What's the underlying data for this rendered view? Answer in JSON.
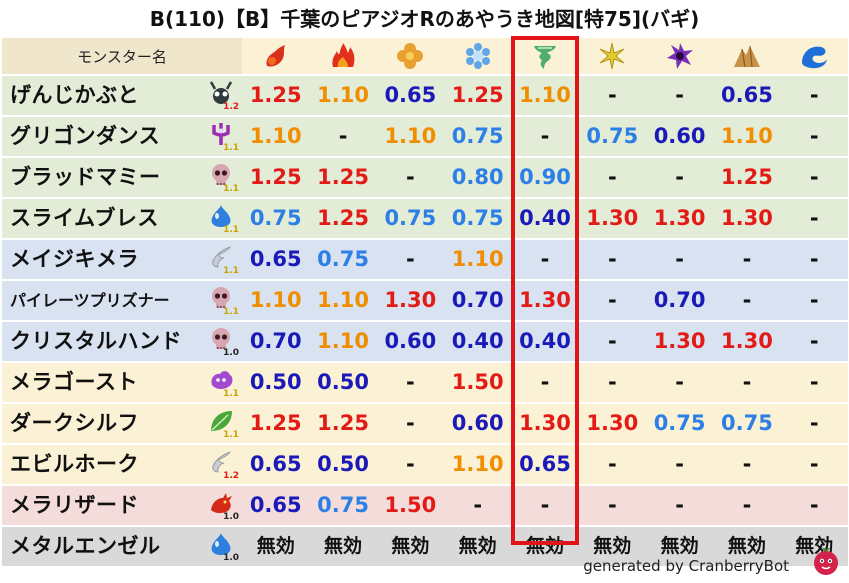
{
  "title": "B(110)【B】千葉のピアジオRのあやうき地図[特75](バギ)",
  "header": {
    "label": "モンスター名",
    "icons": [
      {
        "name": "fire-small-element-icon"
      },
      {
        "name": "fire-large-element-icon"
      },
      {
        "name": "earth-clover-element-icon"
      },
      {
        "name": "ice-snowflake-element-icon"
      },
      {
        "name": "wind-tornado-element-icon"
      },
      {
        "name": "light-burst-element-icon"
      },
      {
        "name": "dark-vortex-element-icon"
      },
      {
        "name": "earth-rock-element-icon"
      },
      {
        "name": "water-wave-element-icon"
      }
    ]
  },
  "rows": [
    {
      "name": "げんじかぶと",
      "grade": "1.2",
      "grade_color": "#e31b17",
      "bg": "green",
      "icon": "beetle-monster-icon",
      "icon_color": "#2f3a3a",
      "values": [
        {
          "t": "1.25",
          "c": "red"
        },
        {
          "t": "1.10",
          "c": "orange"
        },
        {
          "t": "0.65",
          "c": "navy"
        },
        {
          "t": "1.25",
          "c": "red"
        },
        {
          "t": "1.10",
          "c": "orange"
        },
        {
          "t": "-",
          "c": "dash"
        },
        {
          "t": "-",
          "c": "dash"
        },
        {
          "t": "0.65",
          "c": "navy"
        },
        {
          "t": "-",
          "c": "dash"
        }
      ]
    },
    {
      "name": "グリゴンダンス",
      "grade": "1.1",
      "grade_color": "#c9a400",
      "bg": "green",
      "icon": "trident-monster-icon",
      "icon_color": "#9a2fb0",
      "values": [
        {
          "t": "1.10",
          "c": "orange"
        },
        {
          "t": "-",
          "c": "dash"
        },
        {
          "t": "1.10",
          "c": "orange"
        },
        {
          "t": "0.75",
          "c": "blue"
        },
        {
          "t": "-",
          "c": "dash"
        },
        {
          "t": "0.75",
          "c": "blue"
        },
        {
          "t": "0.60",
          "c": "navy"
        },
        {
          "t": "1.10",
          "c": "orange"
        },
        {
          "t": "-",
          "c": "dash"
        }
      ]
    },
    {
      "name": "ブラッドマミー",
      "grade": "1.1",
      "grade_color": "#c9a400",
      "bg": "green",
      "icon": "skull-monster-icon",
      "icon_color": "#d8a6b0",
      "values": [
        {
          "t": "1.25",
          "c": "red"
        },
        {
          "t": "1.25",
          "c": "red"
        },
        {
          "t": "-",
          "c": "dash"
        },
        {
          "t": "0.80",
          "c": "blue"
        },
        {
          "t": "0.90",
          "c": "blue"
        },
        {
          "t": "-",
          "c": "dash"
        },
        {
          "t": "-",
          "c": "dash"
        },
        {
          "t": "1.25",
          "c": "red"
        },
        {
          "t": "-",
          "c": "dash"
        }
      ]
    },
    {
      "name": "スライムブレス",
      "grade": "1.1",
      "grade_color": "#c9a400",
      "bg": "green",
      "icon": "slime-monster-icon",
      "icon_color": "#2f7fe0",
      "values": [
        {
          "t": "0.75",
          "c": "blue"
        },
        {
          "t": "1.25",
          "c": "red"
        },
        {
          "t": "0.75",
          "c": "blue"
        },
        {
          "t": "0.75",
          "c": "blue"
        },
        {
          "t": "0.40",
          "c": "navy"
        },
        {
          "t": "1.30",
          "c": "red"
        },
        {
          "t": "1.30",
          "c": "red"
        },
        {
          "t": "1.30",
          "c": "red"
        },
        {
          "t": "-",
          "c": "dash"
        }
      ]
    },
    {
      "name": "メイジキメラ",
      "grade": "1.1",
      "grade_color": "#c9a400",
      "bg": "blue",
      "icon": "wing-monster-icon",
      "icon_color": "#c8ccd4",
      "values": [
        {
          "t": "0.65",
          "c": "navy"
        },
        {
          "t": "0.75",
          "c": "blue"
        },
        {
          "t": "-",
          "c": "dash"
        },
        {
          "t": "1.10",
          "c": "orange"
        },
        {
          "t": "-",
          "c": "dash"
        },
        {
          "t": "-",
          "c": "dash"
        },
        {
          "t": "-",
          "c": "dash"
        },
        {
          "t": "-",
          "c": "dash"
        },
        {
          "t": "-",
          "c": "dash"
        }
      ]
    },
    {
      "name": "パイレーツプリズナー",
      "grade": "1.1",
      "grade_color": "#c9a400",
      "bg": "blue",
      "icon": "skull-monster-icon",
      "icon_color": "#d8a6b0",
      "small": true,
      "values": [
        {
          "t": "1.10",
          "c": "orange"
        },
        {
          "t": "1.10",
          "c": "orange"
        },
        {
          "t": "1.30",
          "c": "red"
        },
        {
          "t": "0.70",
          "c": "navy"
        },
        {
          "t": "1.30",
          "c": "red"
        },
        {
          "t": "-",
          "c": "dash"
        },
        {
          "t": "0.70",
          "c": "navy"
        },
        {
          "t": "-",
          "c": "dash"
        },
        {
          "t": "-",
          "c": "dash"
        }
      ]
    },
    {
      "name": "クリスタルハンド",
      "grade": "1.0",
      "grade_color": "#222222",
      "bg": "blue",
      "icon": "skull-monster-icon",
      "icon_color": "#d8a6b0",
      "values": [
        {
          "t": "0.70",
          "c": "navy"
        },
        {
          "t": "1.10",
          "c": "orange"
        },
        {
          "t": "0.60",
          "c": "navy"
        },
        {
          "t": "0.40",
          "c": "navy"
        },
        {
          "t": "0.40",
          "c": "navy"
        },
        {
          "t": "-",
          "c": "dash"
        },
        {
          "t": "1.30",
          "c": "red"
        },
        {
          "t": "1.30",
          "c": "red"
        },
        {
          "t": "-",
          "c": "dash"
        }
      ]
    },
    {
      "name": "メラゴースト",
      "grade": "1.1",
      "grade_color": "#c9a400",
      "bg": "yellow",
      "icon": "blob-monster-icon",
      "icon_color": "#a24ad0",
      "values": [
        {
          "t": "0.50",
          "c": "navy"
        },
        {
          "t": "0.50",
          "c": "navy"
        },
        {
          "t": "-",
          "c": "dash"
        },
        {
          "t": "1.50",
          "c": "red"
        },
        {
          "t": "-",
          "c": "dash"
        },
        {
          "t": "-",
          "c": "dash"
        },
        {
          "t": "-",
          "c": "dash"
        },
        {
          "t": "-",
          "c": "dash"
        },
        {
          "t": "-",
          "c": "dash"
        }
      ]
    },
    {
      "name": "ダークシルフ",
      "grade": "1.1",
      "grade_color": "#c9a400",
      "bg": "yellow",
      "icon": "leaf-monster-icon",
      "icon_color": "#4aa83a",
      "values": [
        {
          "t": "1.25",
          "c": "red"
        },
        {
          "t": "1.25",
          "c": "red"
        },
        {
          "t": "-",
          "c": "dash"
        },
        {
          "t": "0.60",
          "c": "navy"
        },
        {
          "t": "1.30",
          "c": "red"
        },
        {
          "t": "1.30",
          "c": "red"
        },
        {
          "t": "0.75",
          "c": "blue"
        },
        {
          "t": "0.75",
          "c": "blue"
        },
        {
          "t": "-",
          "c": "dash"
        }
      ]
    },
    {
      "name": "エビルホーク",
      "grade": "1.2",
      "grade_color": "#e31b17",
      "bg": "yellow",
      "icon": "wing-monster-icon",
      "icon_color": "#c8ccd4",
      "values": [
        {
          "t": "0.65",
          "c": "navy"
        },
        {
          "t": "0.50",
          "c": "navy"
        },
        {
          "t": "-",
          "c": "dash"
        },
        {
          "t": "1.10",
          "c": "orange"
        },
        {
          "t": "0.65",
          "c": "navy"
        },
        {
          "t": "-",
          "c": "dash"
        },
        {
          "t": "-",
          "c": "dash"
        },
        {
          "t": "-",
          "c": "dash"
        },
        {
          "t": "-",
          "c": "dash"
        }
      ]
    },
    {
      "name": "メラリザード",
      "grade": "1.0",
      "grade_color": "#222222",
      "bg": "pink",
      "icon": "dragon-monster-icon",
      "icon_color": "#d42a1a",
      "values": [
        {
          "t": "0.65",
          "c": "navy"
        },
        {
          "t": "0.75",
          "c": "blue"
        },
        {
          "t": "1.50",
          "c": "red"
        },
        {
          "t": "-",
          "c": "dash"
        },
        {
          "t": "-",
          "c": "dash"
        },
        {
          "t": "-",
          "c": "dash"
        },
        {
          "t": "-",
          "c": "dash"
        },
        {
          "t": "-",
          "c": "dash"
        },
        {
          "t": "-",
          "c": "dash"
        }
      ]
    },
    {
      "name": "メタルエンゼル",
      "grade": "1.0",
      "grade_color": "#222222",
      "bg": "gray",
      "icon": "slime-monster-icon",
      "icon_color": "#2f7fe0",
      "values": [
        {
          "t": "無効",
          "c": "null"
        },
        {
          "t": "無効",
          "c": "null"
        },
        {
          "t": "無効",
          "c": "null"
        },
        {
          "t": "無効",
          "c": "null"
        },
        {
          "t": "無効",
          "c": "null"
        },
        {
          "t": "無効",
          "c": "null"
        },
        {
          "t": "無効",
          "c": "null"
        },
        {
          "t": "無効",
          "c": "null"
        },
        {
          "t": "無効",
          "c": "null"
        }
      ]
    }
  ],
  "highlight_column_index": 4,
  "footer": {
    "text": "generated by CranberryBot",
    "avatar_icon": "cranberry-bot-avatar-icon"
  },
  "colors": {
    "red": "#e31b17",
    "orange": "#f08d00",
    "navy": "#1a1ab8",
    "blue": "#2b7fe6",
    "highlight": "#e0141a"
  }
}
